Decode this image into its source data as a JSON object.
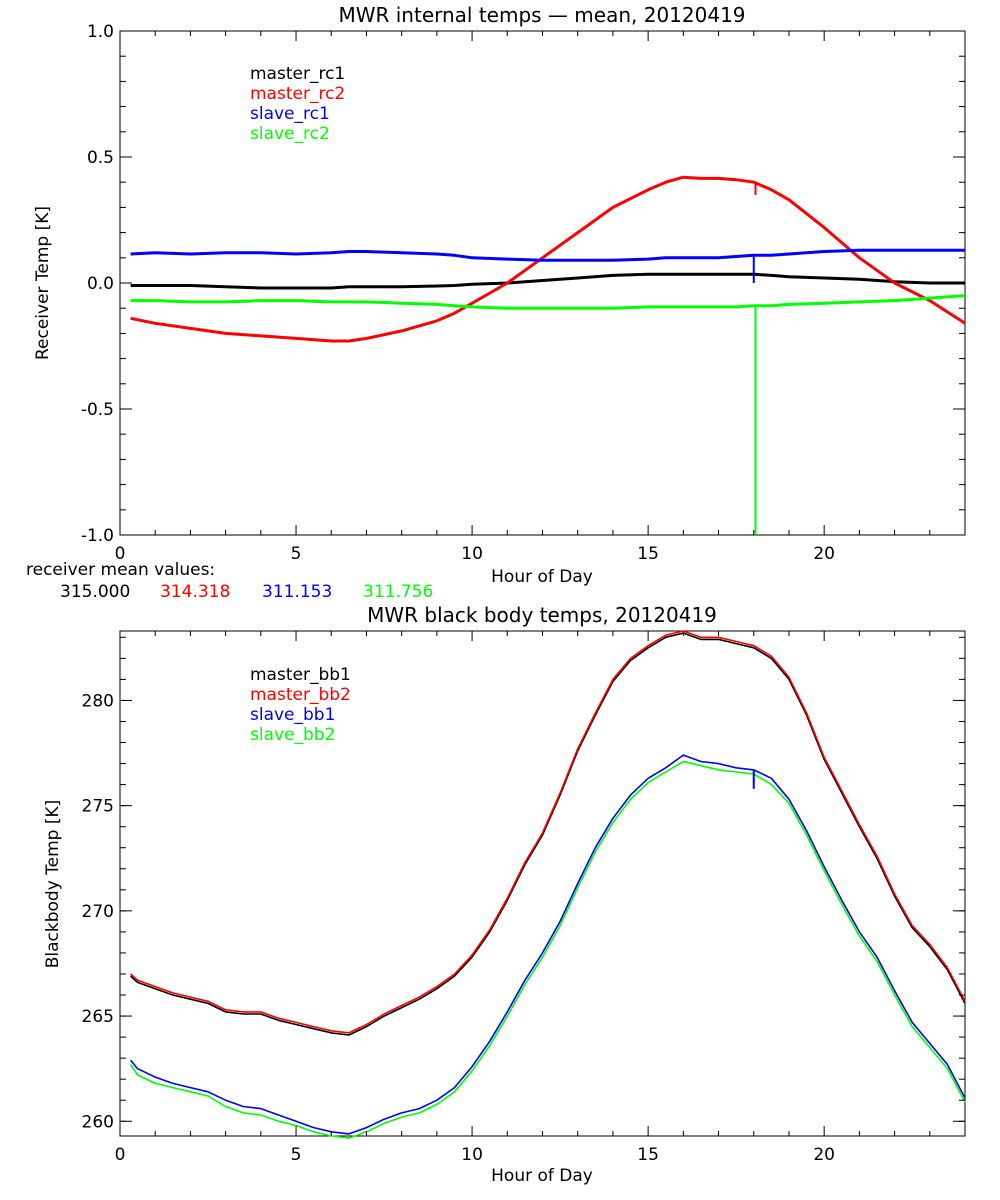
{
  "chart_data": [
    {
      "type": "line",
      "title": "MWR internal temps — mean, 20120419",
      "xlabel": "Hour of Day",
      "ylabel": "Receiver Temp [K]",
      "xlim": [
        0,
        24
      ],
      "ylim": [
        -1.0,
        1.0
      ],
      "grid": false,
      "legend_placement": "top-left",
      "xticks": [
        "0",
        "5",
        "10",
        "15",
        "20"
      ],
      "yticks": [
        "1.0",
        "0.5",
        "0.0",
        "-0.5",
        "-1.0"
      ],
      "x": [
        0.3,
        1,
        2,
        3,
        4,
        5,
        6,
        6.5,
        7,
        8,
        9,
        9.5,
        10,
        11,
        12,
        13,
        14,
        15,
        15.5,
        16,
        16.5,
        17,
        17.5,
        18,
        18.5,
        19,
        20,
        21,
        22,
        23,
        24
      ],
      "series": [
        {
          "name": "master_rc1",
          "color": "#000000",
          "values": [
            -0.01,
            -0.01,
            -0.01,
            -0.015,
            -0.02,
            -0.02,
            -0.02,
            -0.015,
            -0.015,
            -0.015,
            -0.012,
            -0.01,
            -0.005,
            0.0,
            0.01,
            0.02,
            0.03,
            0.035,
            0.035,
            0.035,
            0.035,
            0.035,
            0.035,
            0.035,
            0.03,
            0.025,
            0.02,
            0.015,
            0.005,
            0.0,
            0.0
          ]
        },
        {
          "name": "master_rc2",
          "color": "#ff0000",
          "values": [
            -0.14,
            -0.16,
            -0.18,
            -0.2,
            -0.21,
            -0.22,
            -0.23,
            -0.23,
            -0.22,
            -0.19,
            -0.15,
            -0.12,
            -0.08,
            0.0,
            0.1,
            0.2,
            0.3,
            0.37,
            0.4,
            0.42,
            0.415,
            0.415,
            0.41,
            0.4,
            0.37,
            0.33,
            0.22,
            0.1,
            0.0,
            -0.07,
            -0.16
          ]
        },
        {
          "name": "slave_rc1",
          "color": "#0000ff",
          "values": [
            0.115,
            0.12,
            0.115,
            0.12,
            0.12,
            0.115,
            0.12,
            0.125,
            0.125,
            0.12,
            0.115,
            0.11,
            0.1,
            0.095,
            0.09,
            0.09,
            0.09,
            0.095,
            0.1,
            0.1,
            0.1,
            0.1,
            0.105,
            0.11,
            0.11,
            0.115,
            0.125,
            0.13,
            0.13,
            0.13,
            0.13
          ]
        },
        {
          "name": "slave_rc2",
          "color": "#00ff00",
          "values": [
            -0.07,
            -0.07,
            -0.075,
            -0.075,
            -0.07,
            -0.07,
            -0.075,
            -0.075,
            -0.075,
            -0.08,
            -0.085,
            -0.09,
            -0.095,
            -0.1,
            -0.1,
            -0.1,
            -0.1,
            -0.095,
            -0.095,
            -0.095,
            -0.095,
            -0.095,
            -0.095,
            -0.09,
            -0.09,
            -0.085,
            -0.08,
            -0.075,
            -0.07,
            -0.06,
            -0.05
          ]
        }
      ],
      "spikes": [
        {
          "series": "slave_rc2",
          "x": 18.05,
          "to": -1.0
        },
        {
          "series": "slave_rc1",
          "x": 18.0,
          "to": 0.0
        },
        {
          "series": "master_rc2",
          "x": 18.05,
          "to": 0.35
        }
      ],
      "mean_values": {
        "label": "receiver mean values:",
        "values": [
          {
            "text": "315.000",
            "color": "#000000"
          },
          {
            "text": "314.318",
            "color": "#ff0000"
          },
          {
            "text": "311.153",
            "color": "#0000ff"
          },
          {
            "text": "311.756",
            "color": "#00ff00"
          }
        ]
      }
    },
    {
      "type": "line",
      "title": "MWR black body temps, 20120419",
      "xlabel": "Hour of Day",
      "ylabel": "Blackbody Temp [K]",
      "xlim": [
        0,
        24
      ],
      "ylim": [
        259.3,
        283.3
      ],
      "grid": false,
      "legend_placement": "top-left",
      "xticks": [
        "0",
        "5",
        "10",
        "15",
        "20"
      ],
      "yticks": [
        "280",
        "275",
        "270",
        "265",
        "260"
      ],
      "x": [
        0.3,
        0.5,
        1,
        1.5,
        2,
        2.5,
        3,
        3.5,
        4,
        4.5,
        5,
        5.5,
        6,
        6.5,
        7,
        7.5,
        8,
        8.5,
        9,
        9.5,
        10,
        10.5,
        11,
        11.5,
        12,
        12.5,
        13,
        13.5,
        14,
        14.5,
        15,
        15.5,
        16,
        16.5,
        17,
        17.5,
        18,
        18.5,
        19,
        19.5,
        20,
        20.5,
        21,
        21.5,
        22,
        22.5,
        23,
        23.5,
        24
      ],
      "series": [
        {
          "name": "master_bb1",
          "color": "#000000",
          "values": [
            266.9,
            266.6,
            266.3,
            266.0,
            265.8,
            265.6,
            265.2,
            265.1,
            265.1,
            264.8,
            264.6,
            264.4,
            264.2,
            264.1,
            264.5,
            265.0,
            265.4,
            265.8,
            266.3,
            266.9,
            267.8,
            269.0,
            270.5,
            272.2,
            273.6,
            275.5,
            277.6,
            279.3,
            280.9,
            281.9,
            282.5,
            283.0,
            283.2,
            282.9,
            282.9,
            282.7,
            282.5,
            282.0,
            281.0,
            279.3,
            277.2,
            275.6,
            274.0,
            272.5,
            270.7,
            269.2,
            268.3,
            267.2,
            265.6
          ]
        },
        {
          "name": "master_bb2",
          "color": "#ff0000",
          "values": [
            267.0,
            266.7,
            266.4,
            266.1,
            265.9,
            265.7,
            265.3,
            265.2,
            265.2,
            264.9,
            264.7,
            264.5,
            264.3,
            264.2,
            264.6,
            265.1,
            265.5,
            265.9,
            266.4,
            267.0,
            267.9,
            269.1,
            270.6,
            272.3,
            273.7,
            275.6,
            277.7,
            279.4,
            281.0,
            282.0,
            282.6,
            283.1,
            283.3,
            283.0,
            283.0,
            282.8,
            282.6,
            282.1,
            281.1,
            279.4,
            277.3,
            275.7,
            274.1,
            272.6,
            270.8,
            269.3,
            268.4,
            267.3,
            265.7
          ]
        },
        {
          "name": "slave_bb1",
          "color": "#0000ff",
          "values": [
            262.9,
            262.5,
            262.1,
            261.8,
            261.6,
            261.4,
            261.0,
            260.7,
            260.6,
            260.3,
            260.0,
            259.7,
            259.5,
            259.4,
            259.7,
            260.1,
            260.4,
            260.6,
            261.0,
            261.6,
            262.6,
            263.8,
            265.2,
            266.7,
            268.0,
            269.5,
            271.3,
            273.0,
            274.4,
            275.5,
            276.3,
            276.8,
            277.4,
            277.1,
            277.0,
            276.8,
            276.7,
            276.3,
            275.3,
            273.8,
            272.1,
            270.5,
            269.0,
            267.8,
            266.2,
            264.7,
            263.7,
            262.7,
            261.1
          ]
        },
        {
          "name": "slave_bb2",
          "color": "#00ff00",
          "values": [
            262.7,
            262.2,
            261.8,
            261.6,
            261.4,
            261.2,
            260.7,
            260.4,
            260.3,
            260.0,
            259.8,
            259.5,
            259.3,
            259.2,
            259.5,
            259.9,
            260.2,
            260.4,
            260.8,
            261.4,
            262.4,
            263.6,
            265.0,
            266.5,
            267.8,
            269.3,
            271.1,
            272.8,
            274.2,
            275.3,
            276.1,
            276.6,
            277.1,
            276.9,
            276.7,
            276.6,
            276.5,
            276.0,
            275.1,
            273.6,
            271.9,
            270.3,
            268.8,
            267.6,
            266.0,
            264.5,
            263.5,
            262.5,
            260.9
          ]
        }
      ],
      "spikes": [
        {
          "series": "slave_bb1",
          "x": 18.0,
          "to": 275.8
        }
      ]
    }
  ]
}
